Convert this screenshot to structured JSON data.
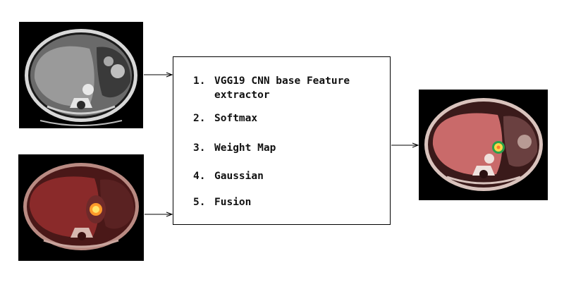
{
  "diagram": {
    "inputs": [
      {
        "name": "ct-scan-image",
        "kind": "grayscale CT"
      },
      {
        "name": "pet-scan-image",
        "kind": "red PET overlay"
      }
    ],
    "output": {
      "name": "fused-scan-image",
      "kind": "fused"
    },
    "process_steps": [
      {
        "number": "1.",
        "label": "VGG19 CNN base Feature\nextractor"
      },
      {
        "number": "2.",
        "label": "Softmax"
      },
      {
        "number": "3.",
        "label": "Weight Map"
      },
      {
        "number": "4.",
        "label": "Gaussian"
      },
      {
        "number": "5.",
        "label": "Fusion"
      }
    ],
    "colors": {
      "box_border": "#000000",
      "text": "#111111",
      "arrow": "#000000",
      "pet_tint": "#8a2a2a",
      "hotspot": "#ffd84a"
    }
  }
}
